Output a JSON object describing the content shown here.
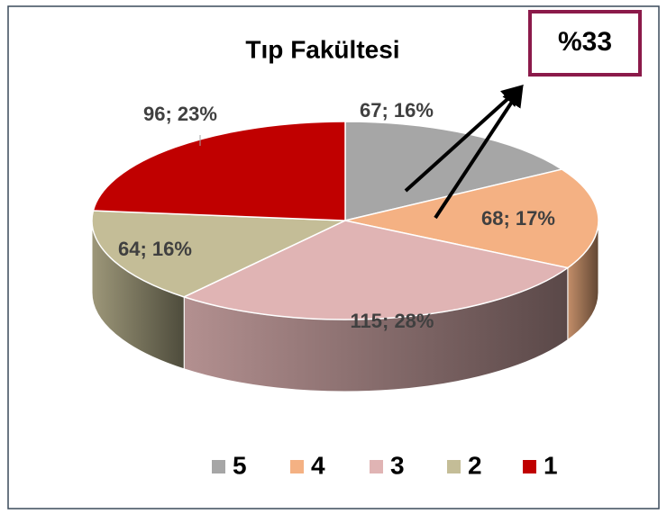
{
  "chart_data": {
    "type": "pie",
    "title": "Tıp Fakültesi",
    "categories": [
      "5",
      "4",
      "3",
      "2",
      "1"
    ],
    "values": [
      67,
      68,
      115,
      64,
      96
    ],
    "value_labels": [
      "67; 16%",
      "68; 17%",
      "115; 28%",
      "64; 16%",
      "96; 23%"
    ],
    "colors": [
      "#a6a6a6",
      "#f4b183",
      "#e0b4b4",
      "#c4bd97",
      "#c00000"
    ],
    "annotation": "%33"
  }
}
